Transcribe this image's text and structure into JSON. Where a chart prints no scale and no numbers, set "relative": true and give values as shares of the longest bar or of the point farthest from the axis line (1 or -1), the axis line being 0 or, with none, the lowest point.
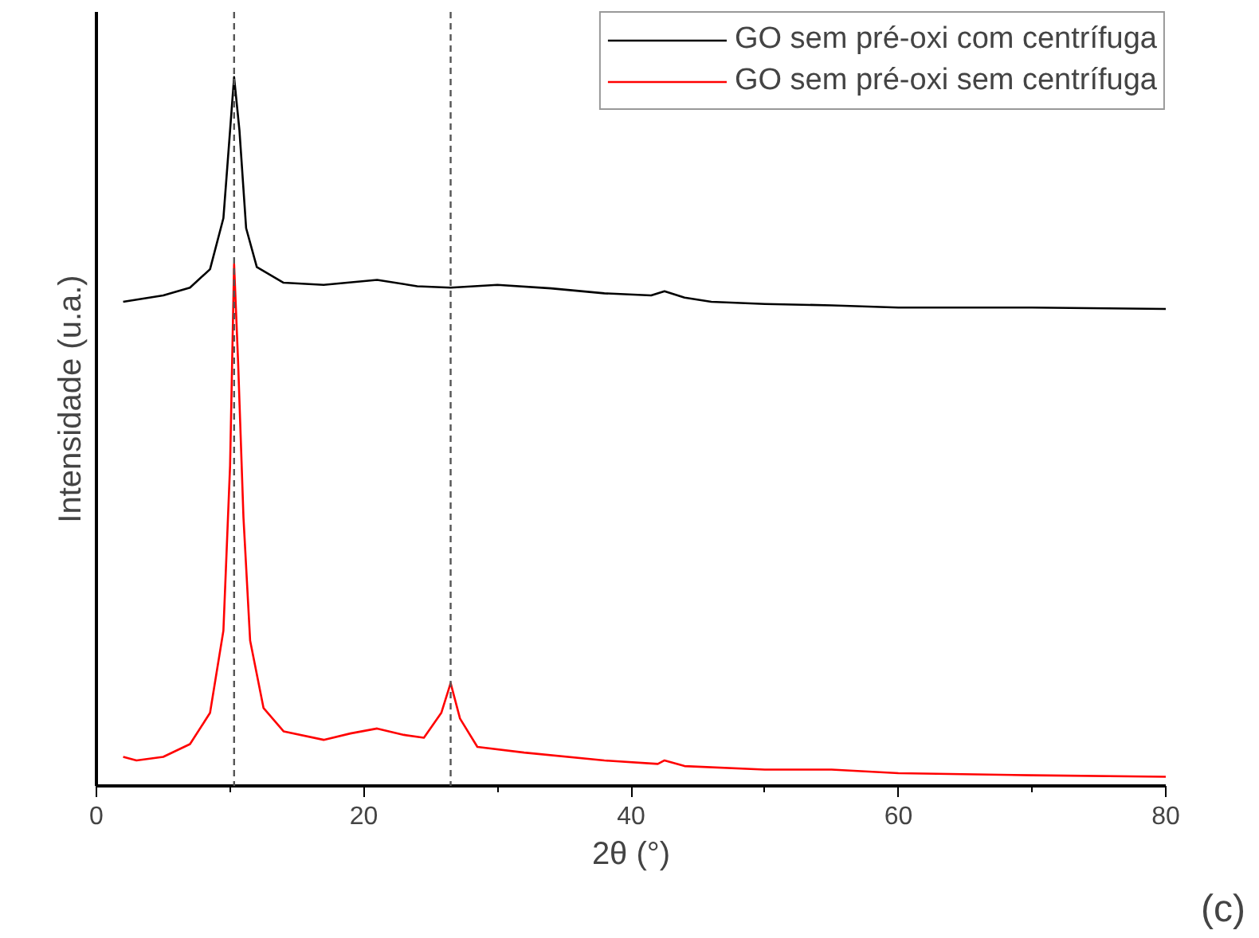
{
  "chart_data": {
    "type": "line",
    "relative": true,
    "xlabel": "2θ (°)",
    "ylabel": "Intensidade (u.a.)",
    "xlim": [
      0,
      80
    ],
    "xticks": [
      0,
      20,
      40,
      60,
      80
    ],
    "legend": "top right",
    "grid": false,
    "marker": "none",
    "line_style": "solid",
    "annotations": [
      "(c)"
    ],
    "ref_lines": [
      {
        "axis": "x",
        "value": 10.3,
        "label": null,
        "color": "#555555",
        "line_style": "dashed"
      },
      {
        "axis": "x",
        "value": 26.5,
        "label": null,
        "color": "#555555",
        "line_style": "dashed"
      }
    ],
    "series": [
      {
        "name": "GO sem pré-oxi com centrífuga",
        "color": "#000000",
        "x": [
          2,
          5,
          7,
          8.5,
          9.5,
          10,
          10.3,
          10.7,
          11.2,
          12,
          14,
          17,
          21,
          24,
          26.5,
          30,
          34,
          38,
          41.5,
          42.5,
          44,
          46,
          50,
          55,
          60,
          70,
          80
        ],
        "values": [
          0.683,
          0.692,
          0.703,
          0.729,
          0.801,
          0.925,
          1.0,
          0.925,
          0.787,
          0.732,
          0.71,
          0.707,
          0.714,
          0.705,
          0.703,
          0.707,
          0.702,
          0.695,
          0.692,
          0.698,
          0.689,
          0.683,
          0.68,
          0.678,
          0.675,
          0.675,
          0.673
        ]
      },
      {
        "name": "GO sem pré-oxi sem centrífuga",
        "color": "#ff0000",
        "x": [
          2,
          3,
          5,
          7,
          8.5,
          9.5,
          10,
          10.3,
          10.6,
          11,
          11.5,
          12.5,
          14,
          17,
          19,
          21,
          23,
          24.5,
          25.8,
          26.5,
          27.2,
          28.5,
          32,
          38,
          42,
          42.5,
          44,
          50,
          55,
          60,
          70,
          80
        ],
        "values": [
          0.041,
          0.036,
          0.041,
          0.059,
          0.103,
          0.219,
          0.452,
          0.736,
          0.598,
          0.379,
          0.205,
          0.11,
          0.077,
          0.065,
          0.074,
          0.081,
          0.072,
          0.068,
          0.103,
          0.145,
          0.095,
          0.055,
          0.047,
          0.036,
          0.031,
          0.036,
          0.028,
          0.023,
          0.023,
          0.018,
          0.015,
          0.013
        ]
      }
    ]
  }
}
